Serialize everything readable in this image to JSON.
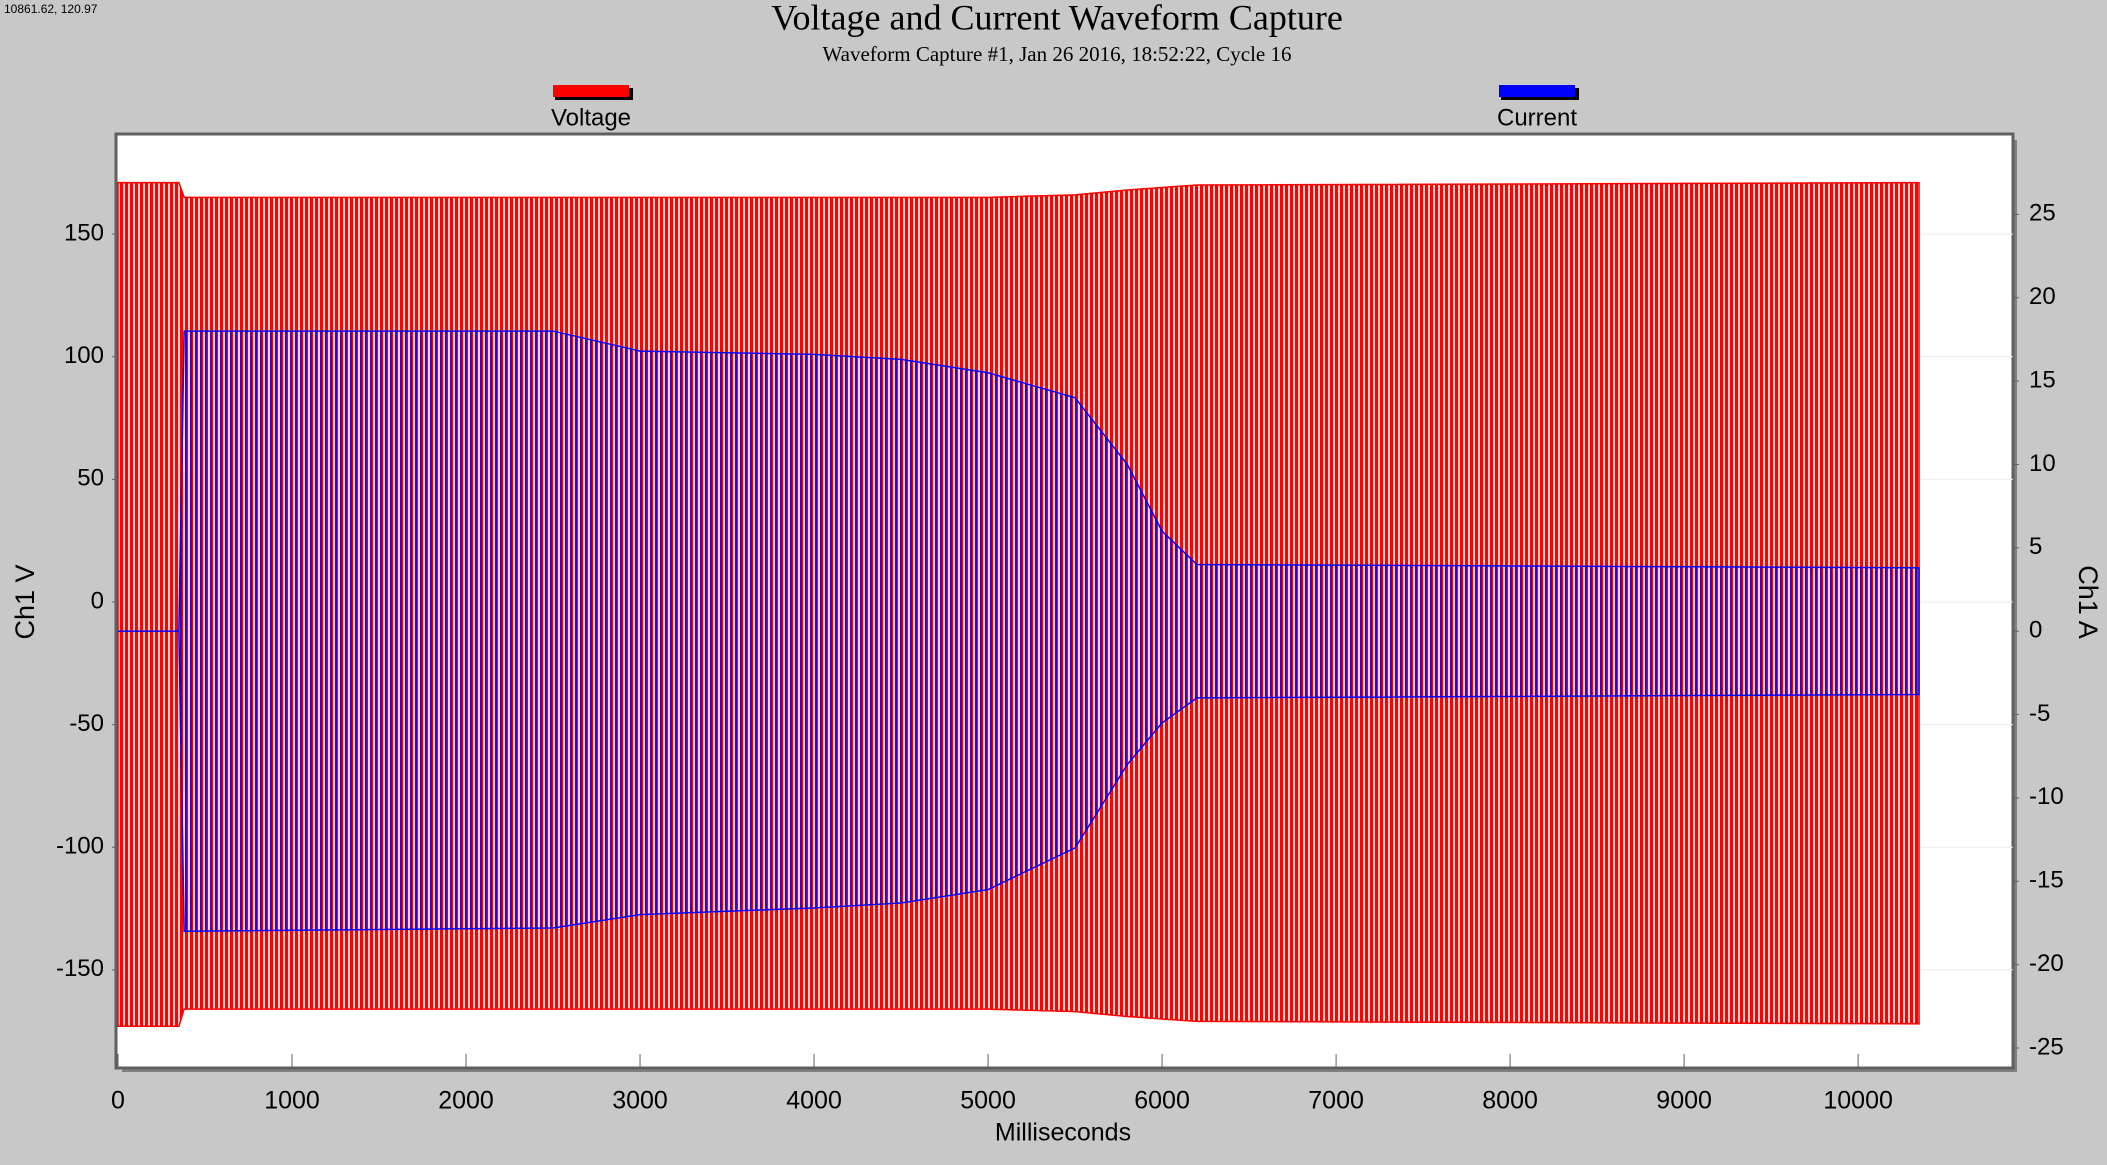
{
  "chart_data": {
    "type": "band",
    "title": "Voltage and Current Waveform Capture",
    "subtitle": "Waveform Capture #1, Jan 26 2016, 18:52:22,  Cycle 16",
    "cursor_readout": "10861.62, 120.97",
    "x_label": "Milliseconds",
    "y_label": "Ch1 V",
    "y2_label": "Ch1 A",
    "x": [
      0,
      350,
      380,
      2500,
      3000,
      3500,
      4000,
      4500,
      5000,
      5500,
      5800,
      6000,
      6200,
      10350
    ],
    "series": [
      {
        "name": "Voltage",
        "color": "#ff0000",
        "upper": [
          171,
          171,
          165,
          165,
          165,
          165,
          165,
          165,
          165,
          166,
          168,
          169,
          170,
          171
        ],
        "lower": [
          -173,
          -173,
          -166,
          -166,
          -166,
          -166,
          -166,
          -166,
          -166,
          -167,
          -169,
          -170,
          -171,
          -172
        ]
      },
      {
        "name": "Current",
        "color": "#0000ff",
        "axis": "y2",
        "upper": [
          0,
          0,
          18,
          18,
          16.8,
          16.7,
          16.6,
          16.3,
          15.5,
          14,
          10,
          6,
          4,
          3.8
        ],
        "lower": [
          0,
          0,
          -18,
          -17.8,
          -17,
          -16.8,
          -16.6,
          -16.3,
          -15.5,
          -13,
          -8,
          -5.5,
          -4,
          -3.8
        ]
      }
    ],
    "xlim": [
      0,
      10890
    ],
    "xticks": [
      0,
      1000,
      2000,
      3000,
      4000,
      5000,
      6000,
      7000,
      8000,
      9000,
      10000
    ],
    "ylim": [
      -190,
      190
    ],
    "yticks": [
      -150,
      -100,
      -50,
      0,
      50,
      100,
      150
    ],
    "y2lim": [
      -26.2,
      29.7
    ],
    "y2ticks": [
      -25,
      -20,
      -15,
      -10,
      -5,
      0,
      5,
      10,
      15,
      20,
      25
    ],
    "grid": true
  }
}
